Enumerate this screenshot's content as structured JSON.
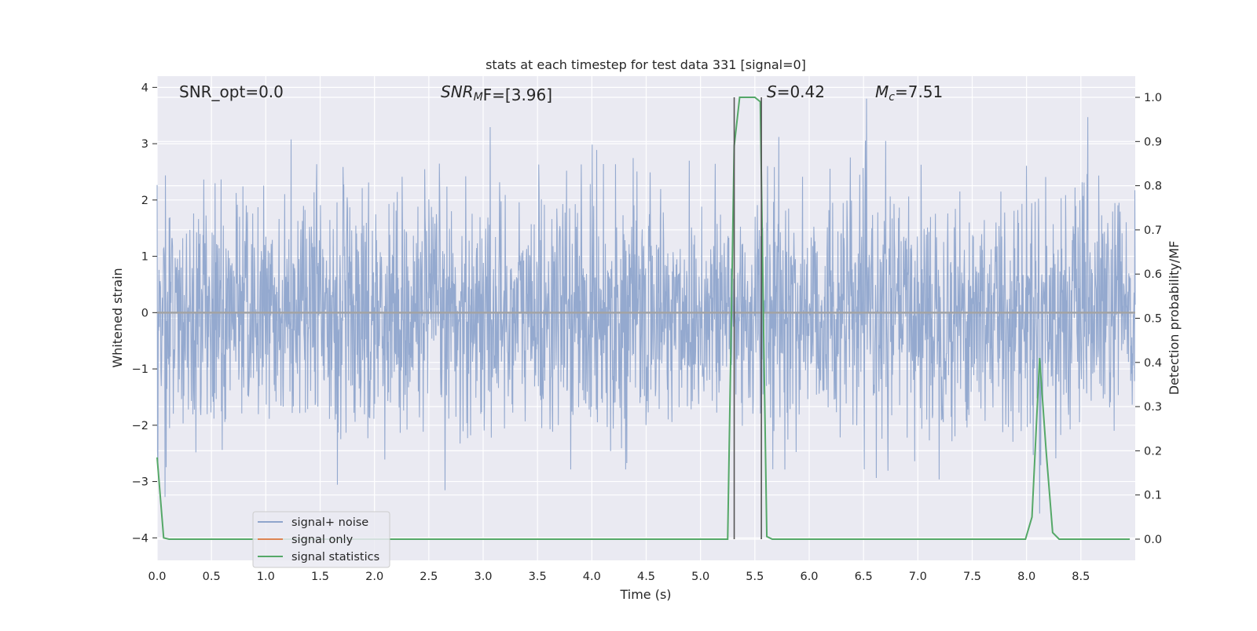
{
  "chart_data": {
    "type": "line",
    "title": "stats at each timestep for test data 331 [signal=0]",
    "xlabel": "Time (s)",
    "ylabel_left": "Whitened strain",
    "ylabel_right": "Detection probability/MF",
    "xlim": [
      0.0,
      9.0
    ],
    "ylim_left": [
      -4.4,
      4.2
    ],
    "ylim_right": [
      -0.048,
      1.048
    ],
    "xticks": [
      "0.0",
      "0.5",
      "1.0",
      "1.5",
      "2.0",
      "2.5",
      "3.0",
      "3.5",
      "4.0",
      "4.5",
      "5.0",
      "5.5",
      "6.0",
      "6.5",
      "7.0",
      "7.5",
      "8.0",
      "8.5"
    ],
    "yticks_left": [
      "4",
      "3",
      "2",
      "1",
      "0",
      "−1",
      "−2",
      "−3",
      "−4"
    ],
    "yticks_right": [
      "1.0",
      "0.9",
      "0.8",
      "0.7",
      "0.6",
      "0.5",
      "0.4",
      "0.3",
      "0.2",
      "0.1",
      "0.0"
    ],
    "grid": true,
    "legend_position": "lower-left",
    "annotations": {
      "snr_opt": "SNR_opt=0.0",
      "snr_mf_main": "SNR",
      "snr_mf_sub": "M",
      "snr_mf_rest": "F=[3.96]",
      "s_main": "S",
      "s_rest": "=0.42",
      "mc_main": "M",
      "mc_sub": "c",
      "mc_rest": "=7.51"
    },
    "vertical_markers_x": [
      5.31,
      5.56
    ],
    "series": [
      {
        "name": "signal+ noise",
        "axis": "left",
        "color": "#8fa5cc",
        "description_values": "dense whitened noise, roughly Gaussian, envelope about ±2.5, extremes near -3.6 and +3.8",
        "amplitude_envelope": 2.4
      },
      {
        "name": "signal only",
        "axis": "left",
        "color": "#dd8452",
        "x": [
          0.0,
          9.0
        ],
        "y": [
          0.0,
          0.0
        ]
      },
      {
        "name": "signal statistics",
        "axis": "right",
        "color": "#55a868",
        "x": [
          0.0,
          0.06,
          0.11,
          5.25,
          5.31,
          5.36,
          5.5,
          5.55,
          5.58,
          5.61,
          5.66,
          7.99,
          8.05,
          8.12,
          8.18,
          8.24,
          8.3,
          8.95
        ],
        "y": [
          0.185,
          0.003,
          0.0,
          0.0,
          0.89,
          1.0,
          1.0,
          0.99,
          0.48,
          0.006,
          0.0,
          0.0,
          0.05,
          0.41,
          0.2,
          0.015,
          0.0,
          0.0
        ]
      }
    ],
    "colors": {
      "plot_background": "#eaeaf2",
      "grid": "#ffffff",
      "marker": "#555555"
    }
  }
}
